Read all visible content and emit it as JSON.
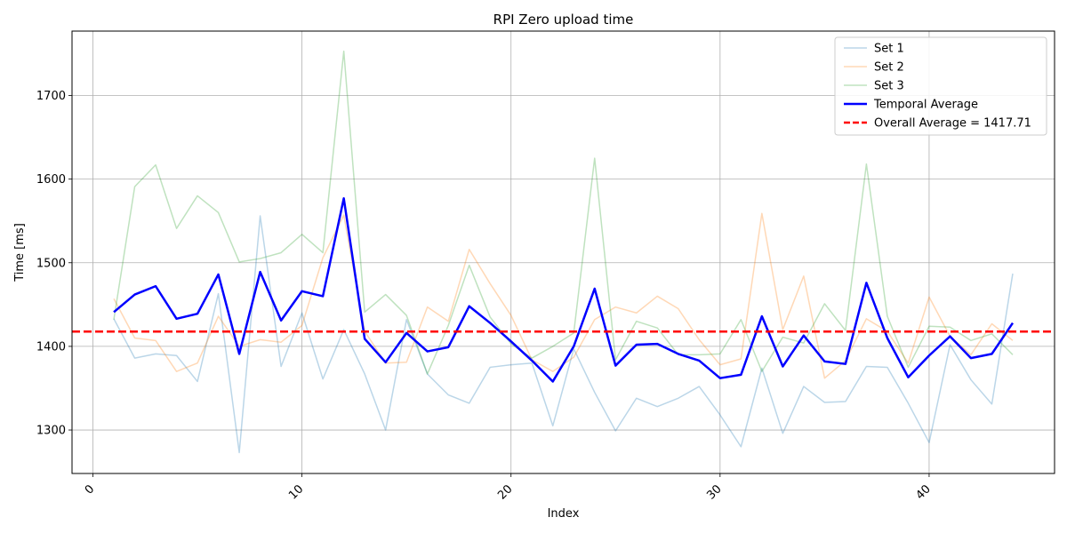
{
  "chart_data": {
    "type": "line",
    "title": "RPI Zero upload time",
    "xlabel": "Index",
    "ylabel": "Time [ms]",
    "xlim": [
      -1,
      46
    ],
    "ylim": [
      1248,
      1777
    ],
    "xticks": [
      0,
      10,
      20,
      30,
      40
    ],
    "yticks": [
      1300,
      1400,
      1500,
      1600,
      1700
    ],
    "grid": true,
    "legend_position": "top-right",
    "x": [
      1,
      2,
      3,
      4,
      5,
      6,
      7,
      8,
      9,
      10,
      11,
      12,
      13,
      14,
      15,
      16,
      17,
      18,
      19,
      20,
      21,
      22,
      23,
      24,
      25,
      26,
      27,
      28,
      29,
      30,
      31,
      32,
      33,
      34,
      35,
      36,
      37,
      38,
      39,
      40,
      41,
      42,
      43,
      44
    ],
    "series": [
      {
        "name": "Set 1",
        "color": "#1f77b4",
        "opacity": 0.3,
        "width": 1.5,
        "style": "solid",
        "values": [
          1433,
          1386,
          1391,
          1389,
          1358,
          1463,
          1273,
          1556,
          1376,
          1440,
          1361,
          1420,
          1367,
          1300,
          1432,
          1367,
          1342,
          1332,
          1375,
          1378,
          1380,
          1305,
          1397,
          1345,
          1299,
          1338,
          1328,
          1338,
          1352,
          1318,
          1280,
          1374,
          1296,
          1352,
          1333,
          1334,
          1376,
          1375,
          1332,
          1285,
          1402,
          1360,
          1331,
          1487
        ]
      },
      {
        "name": "Set 2",
        "color": "#ff7f0e",
        "opacity": 0.3,
        "width": 1.5,
        "style": "solid",
        "values": [
          1457,
          1410,
          1407,
          1370,
          1380,
          1436,
          1400,
          1408,
          1405,
          1425,
          1506,
          1557,
          1418,
          1380,
          1381,
          1447,
          1430,
          1516,
          1475,
          1437,
          1384,
          1370,
          1387,
          1432,
          1447,
          1440,
          1460,
          1445,
          1408,
          1378,
          1385,
          1559,
          1420,
          1484,
          1362,
          1383,
          1433,
          1418,
          1380,
          1459,
          1412,
          1390,
          1427,
          1407
        ]
      },
      {
        "name": "Set 3",
        "color": "#2ca02c",
        "opacity": 0.3,
        "width": 1.5,
        "style": "solid",
        "values": [
          1432,
          1591,
          1617,
          1541,
          1580,
          1560,
          1501,
          1505,
          1512,
          1534,
          1512,
          1753,
          1441,
          1462,
          1437,
          1367,
          1425,
          1497,
          1435,
          1403,
          1386,
          1400,
          1416,
          1625,
          1384,
          1430,
          1422,
          1390,
          1390,
          1391,
          1432,
          1370,
          1411,
          1404,
          1451,
          1419,
          1618,
          1436,
          1375,
          1424,
          1423,
          1407,
          1415,
          1390
        ]
      },
      {
        "name": "Temporal Average",
        "color": "#0000ff",
        "opacity": 1,
        "width": 2.5,
        "style": "solid",
        "values": [
          1441,
          1462,
          1472,
          1433,
          1439,
          1486,
          1391,
          1489,
          1431,
          1466,
          1460,
          1577,
          1409,
          1381,
          1416,
          1394,
          1399,
          1448,
          1428,
          1406,
          1383,
          1358,
          1400,
          1469,
          1377,
          1402,
          1403,
          1391,
          1383,
          1362,
          1366,
          1436,
          1376,
          1413,
          1382,
          1379,
          1476,
          1410,
          1363,
          1389,
          1412,
          1386,
          1391,
          1428
        ]
      }
    ],
    "overall_average": {
      "name": "Overall Average = 1417.71",
      "value": 1417.71,
      "color": "#ff0000",
      "style": "dashed"
    }
  }
}
